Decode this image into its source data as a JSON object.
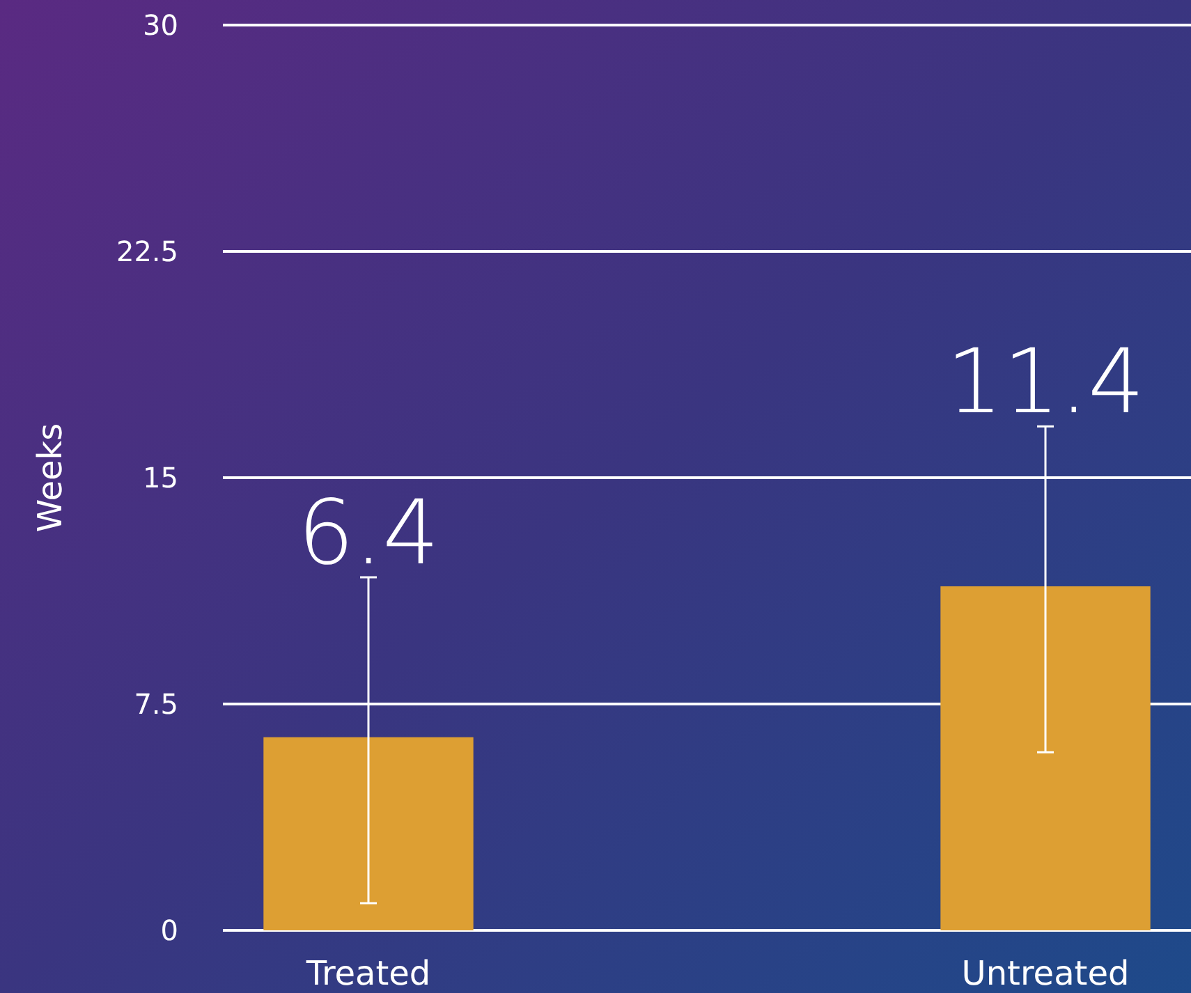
{
  "chart_data": {
    "type": "bar",
    "ylabel": "Weeks",
    "categories": [
      "Treated",
      "Untreated"
    ],
    "values": [
      6.4,
      11.4
    ],
    "color": "#dd9f33",
    "errors": [
      [
        0.9,
        11.7
      ],
      [
        5.9,
        16.7
      ]
    ],
    "ylim": [
      0,
      30
    ],
    "yticks": [
      0,
      7.5,
      15,
      22.5,
      30
    ],
    "grid": "y",
    "data_labels": true
  }
}
